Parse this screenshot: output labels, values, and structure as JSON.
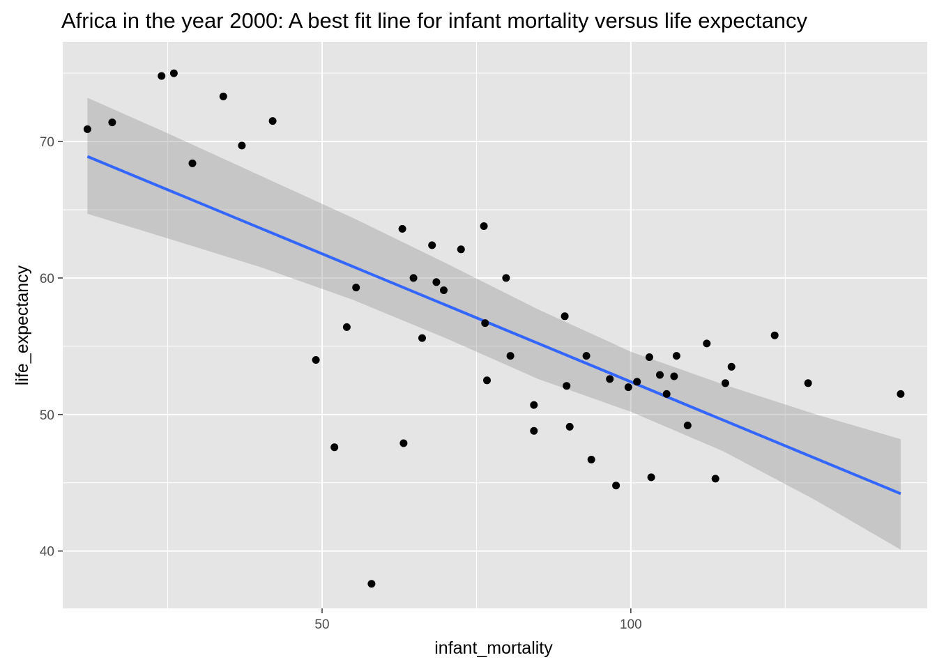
{
  "chart_data": {
    "type": "scatter",
    "title": "Africa in the year 2000: A best fit line for infant mortality versus life expectancy",
    "xlabel": "infant_mortality",
    "ylabel": "life_expectancy",
    "xlim": [
      8,
      148
    ],
    "ylim": [
      35.8,
      77.3
    ],
    "x_ticks": [
      50,
      100
    ],
    "y_ticks": [
      40,
      50,
      60,
      70
    ],
    "grid": true,
    "points": {
      "x": [
        12,
        16,
        24,
        26,
        29,
        34,
        37,
        42,
        49,
        52,
        54,
        55.5,
        58,
        63,
        63.2,
        64.8,
        66.2,
        67.8,
        68.5,
        69.7,
        72.5,
        76.2,
        76.4,
        76.7,
        79.8,
        80.5,
        84.3,
        84.3,
        89.3,
        89.6,
        90.1,
        92.8,
        93.6,
        96.6,
        97.6,
        99.6,
        101,
        103,
        103.3,
        104.7,
        105.8,
        107,
        107.4,
        109.2,
        112.3,
        113.7,
        115.3,
        116.3,
        123.3,
        128.7,
        143.7
      ],
      "y": [
        70.9,
        71.4,
        74.8,
        75,
        68.4,
        73.3,
        69.7,
        71.5,
        54,
        47.6,
        56.4,
        59.3,
        37.6,
        63.6,
        47.9,
        60,
        55.6,
        62.4,
        59.7,
        59.1,
        62.1,
        63.8,
        56.7,
        52.5,
        60,
        54.3,
        50.7,
        48.8,
        57.2,
        52.1,
        49.1,
        54.3,
        46.7,
        52.6,
        44.8,
        52,
        52.4,
        54.2,
        45.4,
        52.9,
        51.5,
        52.8,
        54.3,
        49.2,
        55.2,
        45.3,
        52.3,
        53.5,
        55.8,
        52.3,
        51.5
      ]
    },
    "fit_line": {
      "method": "linear",
      "x": [
        12,
        143.7
      ],
      "y": [
        68.9,
        44.2
      ],
      "color": "#3366ff"
    },
    "confidence_band": {
      "x": [
        12,
        25,
        40,
        55,
        70,
        85,
        100,
        115,
        130,
        143.7
      ],
      "lower": [
        64.7,
        62.9,
        60.8,
        58.4,
        55.6,
        52.6,
        50.2,
        47.3,
        43.7,
        40.1
      ],
      "upper": [
        73.2,
        70.6,
        67.5,
        64.4,
        61.1,
        57.7,
        54.6,
        52.2,
        50,
        48.2
      ],
      "color": "#999999"
    },
    "colors": {
      "panel": "#e5e5e5",
      "grid": "#ffffff",
      "point": "#000000"
    }
  }
}
